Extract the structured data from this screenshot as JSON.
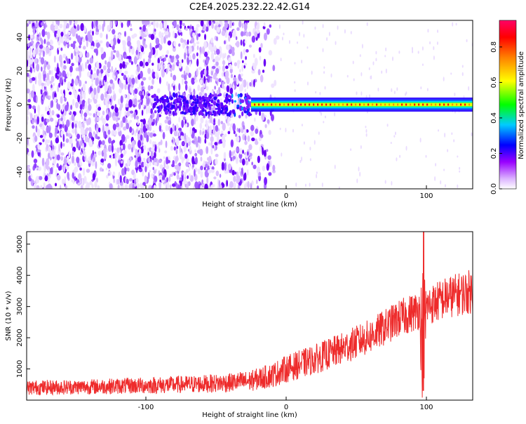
{
  "figure": {
    "title": "C2E4.2025.232.22.42.G14"
  },
  "chart_data": [
    {
      "type": "heatmap",
      "xlabel": "Height of straight line (km)",
      "ylabel": "Frequency (Hz)",
      "xlim": [
        -185,
        133
      ],
      "ylim": [
        -50,
        50
      ],
      "x_ticks": [
        -100,
        0,
        100
      ],
      "y_ticks": [
        -40,
        -20,
        0,
        20,
        40
      ],
      "colorbar": {
        "label": "Normalized spectral amplitude",
        "range": [
          0,
          0.95
        ],
        "ticks": [
          0.0,
          0.2,
          0.4,
          0.6,
          0.8
        ],
        "colormap": [
          "#ffffff",
          "#9900ff",
          "#0000ff",
          "#00ffff",
          "#00ff00",
          "#ffff00",
          "#ff8000",
          "#ff0000",
          "#ff0066"
        ]
      },
      "description_features": {
        "narrowband_line_frequency_hz": 0,
        "narrowband_line_start_km": -25,
        "narrowband_line_peak_amplitude": 0.9,
        "noise_region_km": [
          -185,
          -25
        ]
      },
      "grid": false
    },
    {
      "type": "line",
      "xlabel": "Height of straight line (km)",
      "ylabel": "SNR (10 * v/v)",
      "xlim": [
        -185,
        133
      ],
      "ylim": [
        0,
        5400
      ],
      "x_ticks": [
        -100,
        0,
        100
      ],
      "y_ticks": [
        1000,
        2000,
        3000,
        4000,
        5000
      ],
      "line_color": "#ee2b2b",
      "envelope": {
        "x": [
          -185,
          -150,
          -120,
          -90,
          -60,
          -40,
          -25,
          -10,
          0,
          20,
          40,
          60,
          80,
          95,
          98,
          100,
          115,
          133
        ],
        "center": [
          400,
          420,
          450,
          480,
          520,
          560,
          620,
          800,
          1000,
          1300,
          1650,
          2050,
          2600,
          2900,
          1500,
          3000,
          3300,
          3500
        ],
        "spread": [
          300,
          300,
          320,
          340,
          360,
          380,
          420,
          500,
          550,
          600,
          650,
          700,
          750,
          800,
          3800,
          800,
          850,
          900
        ]
      },
      "spike": {
        "x": 98,
        "max": 5400,
        "min": 300
      },
      "grid": false
    }
  ]
}
